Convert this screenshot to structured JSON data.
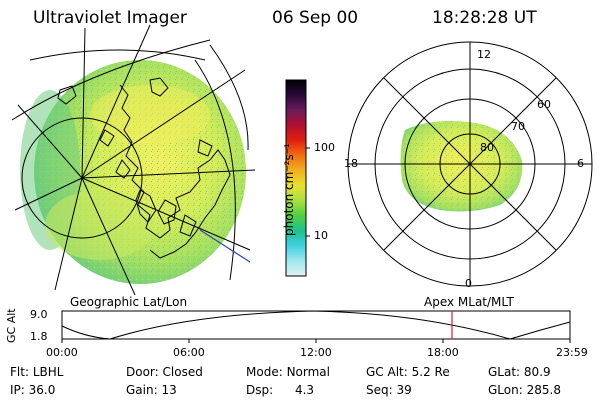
{
  "header": {
    "instrument": "Ultraviolet Imager",
    "date": "06 Sep 00",
    "time": "18:28:28 UT"
  },
  "colorbar": {
    "unit_label": "photon cm⁻²s⁻¹",
    "tick_labels": [
      "100",
      "10"
    ],
    "colors": [
      "#000000",
      "#2a0a3a",
      "#6a1a5a",
      "#b01030",
      "#e02010",
      "#f07010",
      "#f0b020",
      "#e8e030",
      "#a8e040",
      "#50d040",
      "#20c090",
      "#40d0e0",
      "#a0e8f0",
      "#e0f0f0"
    ]
  },
  "geographic_panel": {
    "label": "Geographic Lat/Lon",
    "colors": {
      "image_high": "#f0f060",
      "image_mid": "#b8e860",
      "image_low": "#70d070",
      "outline": "#000000",
      "terminator": "#3040c0"
    }
  },
  "polar_panel": {
    "label": "Apex MLat/MLT",
    "mlt_labels": [
      "12",
      "18",
      "6",
      "0"
    ],
    "lat_labels": [
      "60",
      "70",
      "80"
    ]
  },
  "altitude_plot": {
    "ylabel": "GC Alt",
    "y_ticks": [
      "9.0",
      "1.8"
    ],
    "x_ticks": [
      "00:00",
      "06:00",
      "12:00",
      "18:00",
      "23:59"
    ],
    "current_marker_color": "#e02020"
  },
  "info_rows": [
    [
      {
        "k": "Flt:",
        "v": "LBHL"
      },
      {
        "k": "Door:",
        "v": "Closed"
      },
      {
        "k": "Mode:",
        "v": "Normal"
      },
      {
        "k": "GC Alt:",
        "v": "5.2 Re"
      },
      {
        "k": "GLat:",
        "v": "80.9"
      }
    ],
    [
      {
        "k": "IP:",
        "v": "36.0"
      },
      {
        "k": "Gain:",
        "v": "13"
      },
      {
        "k": "Dsp:",
        "v": "4.3"
      },
      {
        "k": "Seq:",
        "v": "39"
      },
      {
        "k": "GLon:",
        "v": "285.8"
      }
    ]
  ]
}
